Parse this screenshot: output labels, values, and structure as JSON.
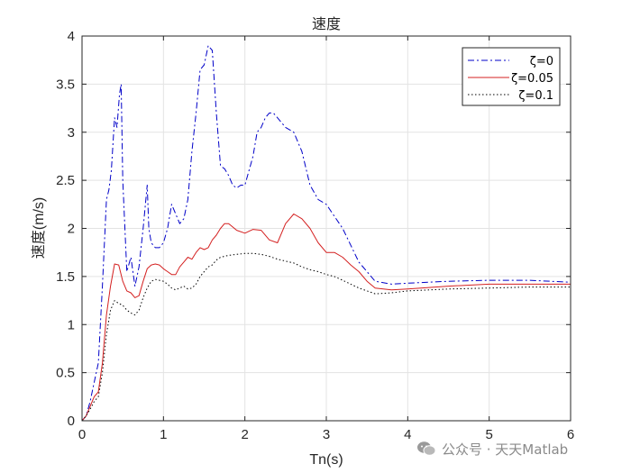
{
  "chart_data": {
    "type": "line",
    "title": "速度",
    "xlabel": "Tn(s)",
    "ylabel": "速度(m/s)",
    "xlim": [
      0,
      6
    ],
    "ylim": [
      0,
      4
    ],
    "xticks": [
      "0",
      "1",
      "2",
      "3",
      "4",
      "5",
      "6"
    ],
    "yticks": [
      "0",
      "0.5",
      "1",
      "1.5",
      "2",
      "2.5",
      "3",
      "3.5",
      "4"
    ],
    "grid": true,
    "legend_position": "top-right",
    "series": [
      {
        "name": "ζ=0",
        "color": "#0000c8",
        "style": "dashdot",
        "x": [
          0,
          0.05,
          0.1,
          0.15,
          0.2,
          0.25,
          0.3,
          0.33,
          0.36,
          0.4,
          0.43,
          0.46,
          0.48,
          0.5,
          0.55,
          0.6,
          0.65,
          0.7,
          0.75,
          0.8,
          0.82,
          0.85,
          0.9,
          0.95,
          1.0,
          1.05,
          1.1,
          1.15,
          1.2,
          1.25,
          1.3,
          1.35,
          1.4,
          1.45,
          1.5,
          1.55,
          1.6,
          1.65,
          1.7,
          1.75,
          1.8,
          1.85,
          1.9,
          1.95,
          2.0,
          2.05,
          2.1,
          2.15,
          2.2,
          2.25,
          2.3,
          2.35,
          2.4,
          2.45,
          2.5,
          2.6,
          2.7,
          2.8,
          2.9,
          3.0,
          3.2,
          3.4,
          3.6,
          3.8,
          4.0,
          4.5,
          5.0,
          5.5,
          6.0
        ],
        "y": [
          0,
          0.05,
          0.2,
          0.4,
          0.6,
          1.4,
          2.3,
          2.4,
          2.6,
          3.15,
          3.05,
          3.4,
          3.5,
          2.5,
          1.55,
          1.7,
          1.4,
          1.6,
          2.0,
          2.45,
          2.0,
          1.85,
          1.8,
          1.8,
          1.85,
          2.0,
          2.25,
          2.15,
          2.05,
          2.1,
          2.3,
          2.8,
          3.2,
          3.65,
          3.7,
          3.9,
          3.85,
          3.2,
          2.65,
          2.62,
          2.55,
          2.45,
          2.42,
          2.45,
          2.45,
          2.6,
          2.75,
          3.0,
          3.05,
          3.15,
          3.2,
          3.2,
          3.15,
          3.1,
          3.05,
          3.0,
          2.8,
          2.45,
          2.3,
          2.25,
          2.0,
          1.65,
          1.45,
          1.42,
          1.43,
          1.45,
          1.46,
          1.46,
          1.44
        ]
      },
      {
        "name": "ζ=0.05",
        "color": "#d42020",
        "style": "solid",
        "x": [
          0,
          0.05,
          0.1,
          0.15,
          0.2,
          0.25,
          0.3,
          0.35,
          0.4,
          0.45,
          0.5,
          0.55,
          0.6,
          0.65,
          0.7,
          0.75,
          0.8,
          0.85,
          0.9,
          0.95,
          1.0,
          1.05,
          1.1,
          1.15,
          1.2,
          1.25,
          1.3,
          1.35,
          1.4,
          1.45,
          1.5,
          1.55,
          1.6,
          1.65,
          1.7,
          1.75,
          1.8,
          1.9,
          2.0,
          2.1,
          2.2,
          2.3,
          2.4,
          2.5,
          2.6,
          2.7,
          2.8,
          2.9,
          3.0,
          3.1,
          3.2,
          3.3,
          3.4,
          3.5,
          3.6,
          3.8,
          4.0,
          4.5,
          5.0,
          5.5,
          6.0
        ],
        "y": [
          0,
          0.05,
          0.15,
          0.25,
          0.3,
          0.6,
          1.1,
          1.4,
          1.63,
          1.62,
          1.45,
          1.35,
          1.33,
          1.28,
          1.3,
          1.45,
          1.58,
          1.62,
          1.63,
          1.62,
          1.58,
          1.55,
          1.52,
          1.52,
          1.6,
          1.65,
          1.7,
          1.68,
          1.75,
          1.8,
          1.78,
          1.8,
          1.88,
          1.93,
          2.0,
          2.05,
          2.05,
          1.98,
          1.95,
          1.99,
          1.98,
          1.88,
          1.85,
          2.05,
          2.15,
          2.1,
          2.0,
          1.85,
          1.75,
          1.75,
          1.7,
          1.62,
          1.55,
          1.45,
          1.38,
          1.36,
          1.37,
          1.4,
          1.42,
          1.42,
          1.42
        ]
      },
      {
        "name": "ζ=0.1",
        "color": "#000000",
        "style": "dotted",
        "x": [
          0,
          0.05,
          0.1,
          0.15,
          0.2,
          0.25,
          0.3,
          0.35,
          0.4,
          0.45,
          0.5,
          0.55,
          0.6,
          0.65,
          0.7,
          0.75,
          0.8,
          0.85,
          0.9,
          0.95,
          1.0,
          1.05,
          1.1,
          1.15,
          1.2,
          1.25,
          1.3,
          1.35,
          1.4,
          1.45,
          1.5,
          1.55,
          1.6,
          1.65,
          1.7,
          1.8,
          1.9,
          2.0,
          2.1,
          2.2,
          2.3,
          2.4,
          2.5,
          2.6,
          2.7,
          2.8,
          2.9,
          3.0,
          3.1,
          3.2,
          3.3,
          3.4,
          3.5,
          3.6,
          3.8,
          4.0,
          4.5,
          5.0,
          5.5,
          6.0
        ],
        "y": [
          0,
          0.05,
          0.12,
          0.2,
          0.25,
          0.5,
          0.9,
          1.15,
          1.25,
          1.22,
          1.2,
          1.15,
          1.12,
          1.1,
          1.15,
          1.28,
          1.38,
          1.45,
          1.47,
          1.46,
          1.45,
          1.42,
          1.38,
          1.36,
          1.38,
          1.4,
          1.37,
          1.38,
          1.42,
          1.5,
          1.55,
          1.6,
          1.62,
          1.67,
          1.7,
          1.72,
          1.73,
          1.74,
          1.74,
          1.73,
          1.71,
          1.68,
          1.66,
          1.64,
          1.6,
          1.57,
          1.55,
          1.52,
          1.5,
          1.46,
          1.42,
          1.38,
          1.35,
          1.32,
          1.33,
          1.35,
          1.37,
          1.38,
          1.39,
          1.39
        ]
      }
    ]
  },
  "watermark": {
    "text": "公众号 · 天天Matlab",
    "icon": "wechat-icon"
  }
}
